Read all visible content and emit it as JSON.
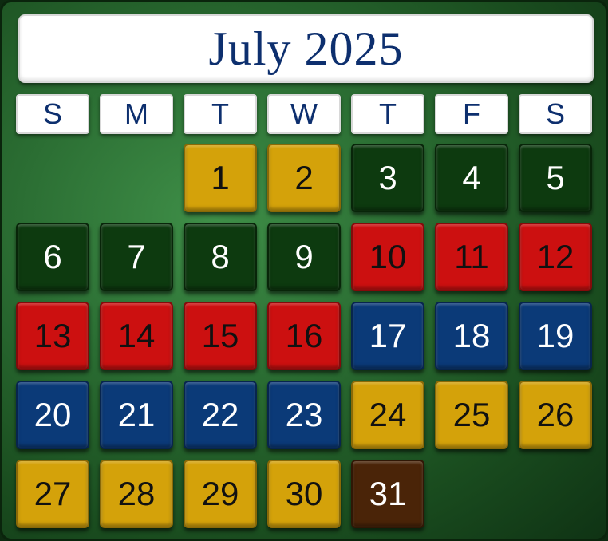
{
  "title": "July 2025",
  "weekdays": [
    "S",
    "M",
    "T",
    "W",
    "T",
    "F",
    "S"
  ],
  "colors": {
    "gold": "#d4a20a",
    "green": "#0d3a0f",
    "red": "#cc1010",
    "blue": "#0b3a78",
    "brown": "#4a2408",
    "title_text": "#0d2f6e"
  },
  "days": [
    {
      "label": "1",
      "color": "gold"
    },
    {
      "label": "2",
      "color": "gold"
    },
    {
      "label": "3",
      "color": "green"
    },
    {
      "label": "4",
      "color": "green"
    },
    {
      "label": "5",
      "color": "green"
    },
    {
      "label": "6",
      "color": "green"
    },
    {
      "label": "7",
      "color": "green"
    },
    {
      "label": "8",
      "color": "green"
    },
    {
      "label": "9",
      "color": "green"
    },
    {
      "label": "10",
      "color": "red"
    },
    {
      "label": "11",
      "color": "red"
    },
    {
      "label": "12",
      "color": "red"
    },
    {
      "label": "13",
      "color": "red"
    },
    {
      "label": "14",
      "color": "red"
    },
    {
      "label": "15",
      "color": "red"
    },
    {
      "label": "16",
      "color": "red"
    },
    {
      "label": "17",
      "color": "blue"
    },
    {
      "label": "18",
      "color": "blue"
    },
    {
      "label": "19",
      "color": "blue"
    },
    {
      "label": "20",
      "color": "blue"
    },
    {
      "label": "21",
      "color": "blue"
    },
    {
      "label": "22",
      "color": "blue"
    },
    {
      "label": "23",
      "color": "blue"
    },
    {
      "label": "24",
      "color": "gold"
    },
    {
      "label": "25",
      "color": "gold"
    },
    {
      "label": "26",
      "color": "gold"
    },
    {
      "label": "27",
      "color": "gold"
    },
    {
      "label": "28",
      "color": "gold"
    },
    {
      "label": "29",
      "color": "gold"
    },
    {
      "label": "30",
      "color": "gold"
    },
    {
      "label": "31",
      "color": "brown"
    }
  ]
}
